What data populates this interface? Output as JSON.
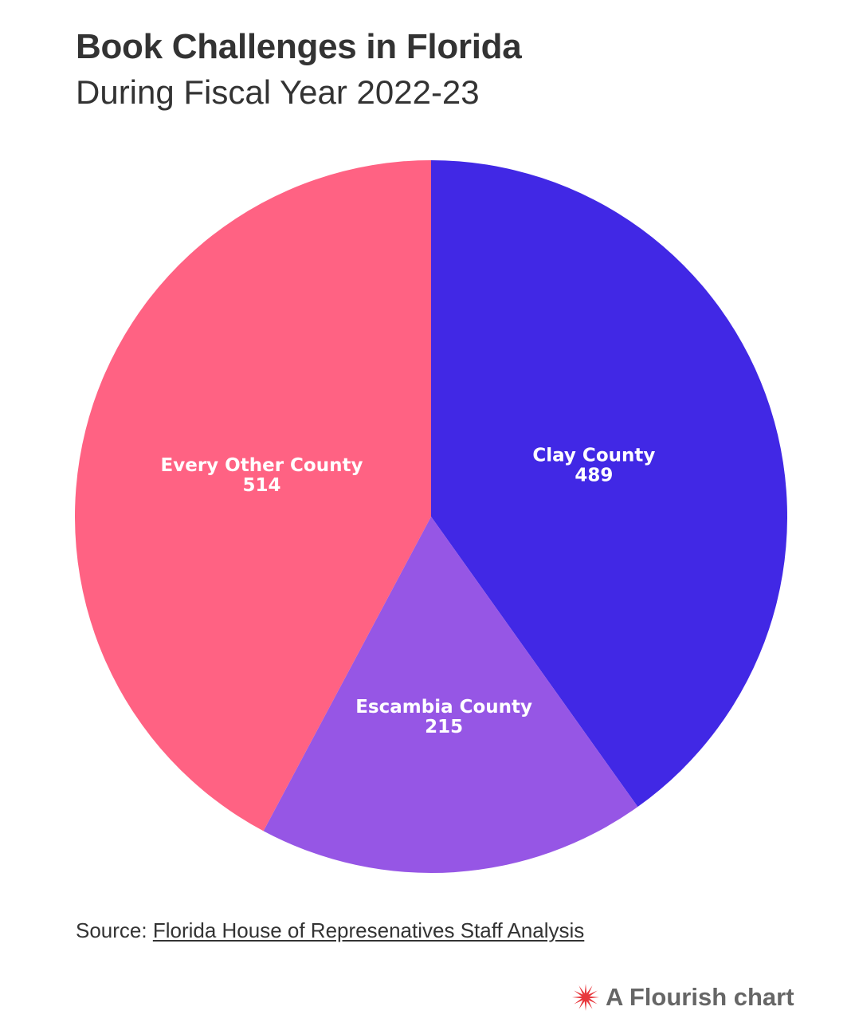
{
  "header": {
    "title": "Book Challenges in Florida",
    "subtitle": "During Fiscal Year 2022-23"
  },
  "chart_data": {
    "type": "pie",
    "title": "Book Challenges in Florida",
    "subtitle": "During Fiscal Year 2022-23",
    "categories": [
      "Clay County",
      "Escambia County",
      "Every Other County"
    ],
    "values": [
      489,
      215,
      514
    ],
    "colors": [
      "#4128e5",
      "#9656e5",
      "#ff6283"
    ],
    "start": "12 o'clock",
    "direction": "clockwise",
    "labels_inside": true
  },
  "footer": {
    "source_prefix": "Source: ",
    "source_link_text": "Florida House of Represenatives Staff Analysis",
    "brand_text": "A Flourish chart",
    "brand_icon": "flourish-burst-icon",
    "brand_icon_color": "#e8383d"
  }
}
